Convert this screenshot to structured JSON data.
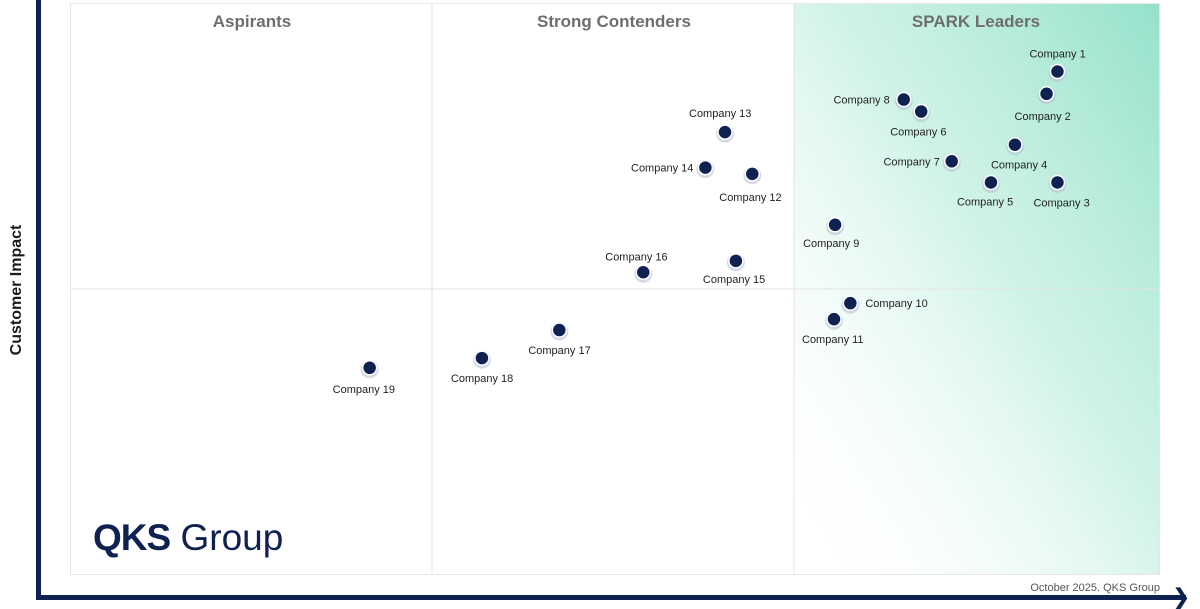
{
  "chart_data": {
    "type": "scatter",
    "ylabel": "Customer Impact",
    "quadrants": [
      "Aspirants",
      "Strong Contenders",
      "SPARK Leaders"
    ],
    "grid": true,
    "points": [
      {
        "label": "Company 1",
        "x": 90.5,
        "y": 88.2
      },
      {
        "label": "Company 2",
        "x": 89.5,
        "y": 84.3
      },
      {
        "label": "Company 3",
        "x": 90.5,
        "y": 68.8
      },
      {
        "label": "Company 4",
        "x": 86.6,
        "y": 75.4
      },
      {
        "label": "Company 5",
        "x": 84.4,
        "y": 68.8
      },
      {
        "label": "Company 6",
        "x": 78.0,
        "y": 81.2
      },
      {
        "label": "Company 7",
        "x": 80.8,
        "y": 72.5
      },
      {
        "label": "Company 8",
        "x": 76.4,
        "y": 83.3
      },
      {
        "label": "Company 9",
        "x": 70.1,
        "y": 61.4
      },
      {
        "label": "Company 10",
        "x": 71.5,
        "y": 47.7
      },
      {
        "label": "Company 11",
        "x": 70.0,
        "y": 44.9
      },
      {
        "label": "Company 12",
        "x": 62.5,
        "y": 70.3
      },
      {
        "label": "Company 13",
        "x": 60.0,
        "y": 77.6
      },
      {
        "label": "Company 14",
        "x": 58.2,
        "y": 71.4
      },
      {
        "label": "Company 15",
        "x": 61.0,
        "y": 55.1
      },
      {
        "label": "Company 16",
        "x": 52.5,
        "y": 53.1
      },
      {
        "label": "Company 17",
        "x": 44.8,
        "y": 43.0
      },
      {
        "label": "Company 18",
        "x": 37.7,
        "y": 38.1
      },
      {
        "label": "Company 19",
        "x": 27.4,
        "y": 36.4
      }
    ]
  },
  "logo": {
    "strong": "QKS",
    "light": "Group"
  },
  "footnote": "October 2025. QKS Group",
  "colors": {
    "point": "#0e2150",
    "axis": "#0e2150",
    "leader_tint": "#8fe0c8"
  }
}
